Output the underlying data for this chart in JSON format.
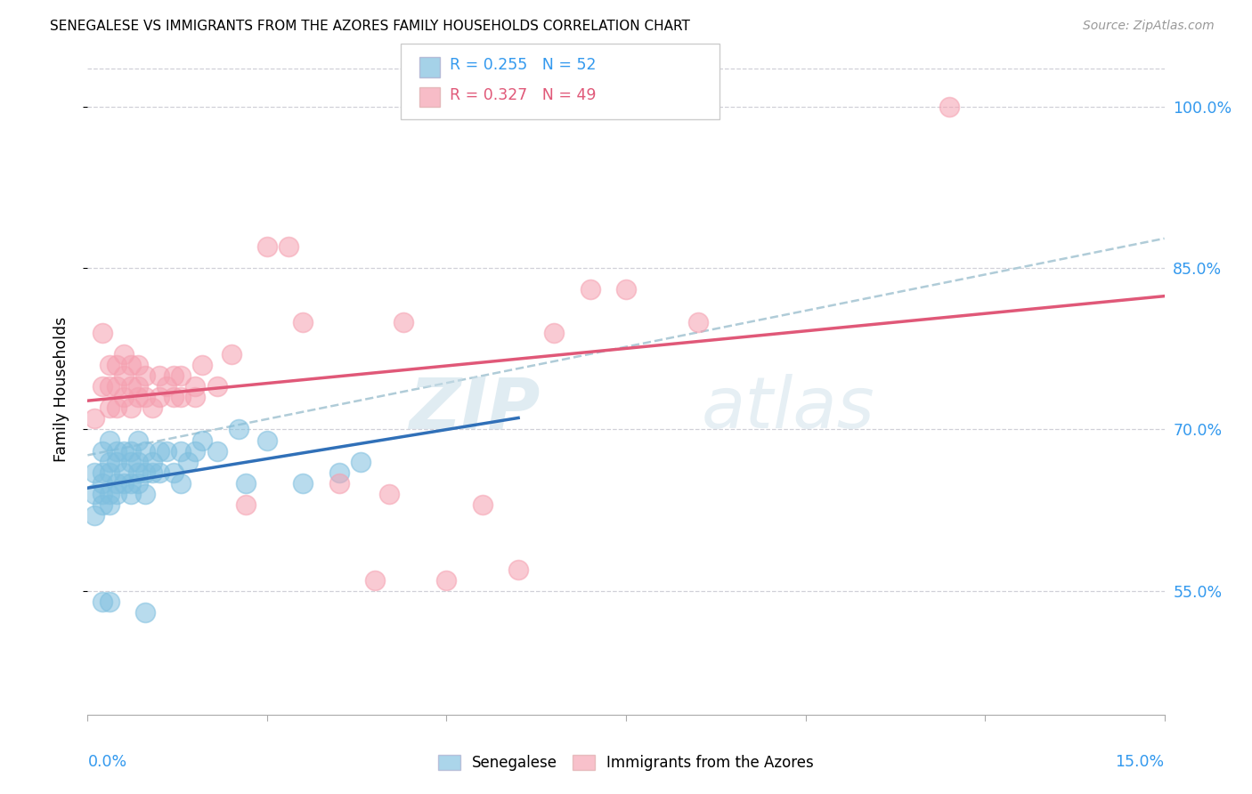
{
  "title": "SENEGALESE VS IMMIGRANTS FROM THE AZORES FAMILY HOUSEHOLDS CORRELATION CHART",
  "source": "Source: ZipAtlas.com",
  "ylabel": "Family Households",
  "ytick_labels": [
    "55.0%",
    "70.0%",
    "85.0%",
    "100.0%"
  ],
  "ytick_values": [
    0.55,
    0.7,
    0.85,
    1.0
  ],
  "xlim": [
    0.0,
    0.15
  ],
  "ylim": [
    0.435,
    1.04
  ],
  "blue_color": "#7fbfdf",
  "pink_color": "#f5a0b0",
  "blue_line_color": "#3070b8",
  "pink_line_color": "#e05878",
  "dashed_line_color": "#b0ccd8",
  "watermark_zip": "ZIP",
  "watermark_atlas": "atlas",
  "blue_scatter_x": [
    0.001,
    0.001,
    0.001,
    0.002,
    0.002,
    0.002,
    0.002,
    0.002,
    0.003,
    0.003,
    0.003,
    0.003,
    0.003,
    0.004,
    0.004,
    0.004,
    0.004,
    0.005,
    0.005,
    0.005,
    0.006,
    0.006,
    0.006,
    0.006,
    0.007,
    0.007,
    0.007,
    0.007,
    0.008,
    0.008,
    0.008,
    0.009,
    0.009,
    0.01,
    0.01,
    0.011,
    0.012,
    0.013,
    0.014,
    0.015,
    0.016,
    0.018,
    0.021,
    0.022,
    0.025,
    0.03,
    0.035,
    0.038,
    0.002,
    0.003,
    0.008,
    0.013
  ],
  "blue_scatter_y": [
    0.62,
    0.64,
    0.66,
    0.63,
    0.64,
    0.65,
    0.66,
    0.68,
    0.63,
    0.64,
    0.66,
    0.67,
    0.69,
    0.64,
    0.65,
    0.67,
    0.68,
    0.65,
    0.66,
    0.68,
    0.64,
    0.65,
    0.67,
    0.68,
    0.65,
    0.66,
    0.67,
    0.69,
    0.64,
    0.66,
    0.68,
    0.66,
    0.67,
    0.66,
    0.68,
    0.68,
    0.66,
    0.68,
    0.67,
    0.68,
    0.69,
    0.68,
    0.7,
    0.65,
    0.69,
    0.65,
    0.66,
    0.67,
    0.54,
    0.54,
    0.53,
    0.65
  ],
  "pink_scatter_x": [
    0.001,
    0.002,
    0.002,
    0.003,
    0.003,
    0.003,
    0.004,
    0.004,
    0.004,
    0.005,
    0.005,
    0.005,
    0.006,
    0.006,
    0.006,
    0.007,
    0.007,
    0.007,
    0.008,
    0.008,
    0.009,
    0.01,
    0.01,
    0.011,
    0.012,
    0.012,
    0.013,
    0.013,
    0.015,
    0.015,
    0.016,
    0.018,
    0.02,
    0.022,
    0.025,
    0.028,
    0.03,
    0.035,
    0.04,
    0.042,
    0.044,
    0.05,
    0.055,
    0.06,
    0.065,
    0.07,
    0.075,
    0.085,
    0.12
  ],
  "pink_scatter_y": [
    0.71,
    0.74,
    0.79,
    0.72,
    0.74,
    0.76,
    0.72,
    0.74,
    0.76,
    0.73,
    0.75,
    0.77,
    0.72,
    0.74,
    0.76,
    0.73,
    0.74,
    0.76,
    0.73,
    0.75,
    0.72,
    0.73,
    0.75,
    0.74,
    0.73,
    0.75,
    0.73,
    0.75,
    0.73,
    0.74,
    0.76,
    0.74,
    0.77,
    0.63,
    0.87,
    0.87,
    0.8,
    0.65,
    0.56,
    0.64,
    0.8,
    0.56,
    0.63,
    0.57,
    0.79,
    0.83,
    0.83,
    0.8,
    1.0
  ]
}
